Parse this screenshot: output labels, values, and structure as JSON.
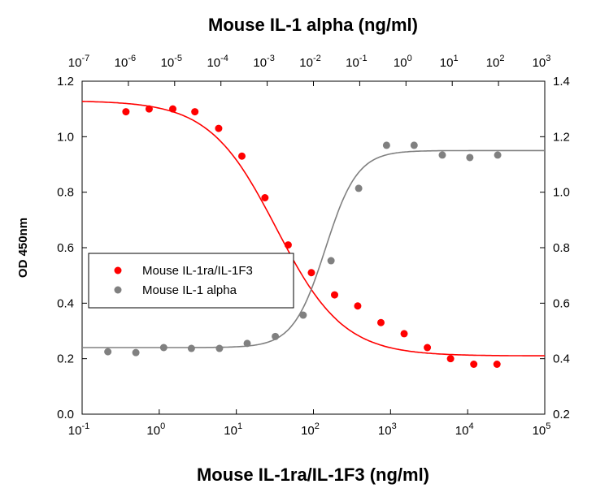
{
  "chart_data": {
    "type": "scatter",
    "top_title": "Mouse IL-1 alpha (ng/ml)",
    "xlabel": "Mouse IL-1ra/IL-1F3 (ng/ml)",
    "ylabel": "OD 450nm",
    "x_scale": "log",
    "xlim": [
      0.1,
      100000
    ],
    "x_top_scale": "log",
    "x_top_lim": [
      1e-07,
      1000
    ],
    "ylim_left": [
      0.0,
      1.2
    ],
    "ylim_right": [
      0.2,
      1.4
    ],
    "x_ticks_bottom": [
      {
        "base": "10",
        "exp": "-1"
      },
      {
        "base": "10",
        "exp": "0"
      },
      {
        "base": "10",
        "exp": "1"
      },
      {
        "base": "10",
        "exp": "2"
      },
      {
        "base": "10",
        "exp": "3"
      },
      {
        "base": "10",
        "exp": "4"
      },
      {
        "base": "10",
        "exp": "5"
      }
    ],
    "x_ticks_top": [
      {
        "base": "10",
        "exp": "-7"
      },
      {
        "base": "10",
        "exp": "-6"
      },
      {
        "base": "10",
        "exp": "-5"
      },
      {
        "base": "10",
        "exp": "-4"
      },
      {
        "base": "10",
        "exp": "-3"
      },
      {
        "base": "10",
        "exp": "-2"
      },
      {
        "base": "10",
        "exp": "-1"
      },
      {
        "base": "10",
        "exp": "0"
      },
      {
        "base": "10",
        "exp": "1"
      },
      {
        "base": "10",
        "exp": "2"
      },
      {
        "base": "10",
        "exp": "3"
      }
    ],
    "y_ticks_left": [
      "0.0",
      "0.2",
      "0.4",
      "0.6",
      "0.8",
      "1.0",
      "1.2"
    ],
    "y_ticks_right": [
      "0.2",
      "0.4",
      "0.6",
      "0.8",
      "1.0",
      "1.2",
      "1.4"
    ],
    "grid": false,
    "legend_placement": "center-left",
    "series": [
      {
        "name": "Mouse IL-1ra/IL-1F3",
        "color": "#ff0000",
        "axis": "bottom-left",
        "x": [
          0.37,
          0.74,
          1.5,
          2.9,
          5.9,
          11.8,
          23.5,
          47,
          94,
          188,
          375,
          750,
          1500,
          3000,
          6000,
          12000,
          24000
        ],
        "y": [
          1.09,
          1.1,
          1.1,
          1.09,
          1.03,
          0.93,
          0.78,
          0.61,
          0.51,
          0.43,
          0.39,
          0.33,
          0.29,
          0.24,
          0.2,
          0.18,
          0.18
        ],
        "fit": {
          "model": "4PL",
          "top": 1.13,
          "bottom": 0.21,
          "ec50": 33,
          "hill": -1.0
        }
      },
      {
        "name": "Mouse IL-1 alpha",
        "color": "#808080",
        "axis": "top-right",
        "x": [
          3.6e-07,
          1.45e-06,
          5.8e-06,
          2.3e-05,
          9.3e-05,
          0.00037,
          0.0015,
          0.006,
          0.024,
          0.095,
          0.38,
          1.5,
          6.1,
          24,
          96
        ],
        "y": [
          0.425,
          0.422,
          0.44,
          0.437,
          0.437,
          0.455,
          0.48,
          0.557,
          0.753,
          1.014,
          1.169,
          1.169,
          1.134,
          1.125,
          1.134
        ],
        "fit": {
          "model": "4PL",
          "top": 1.15,
          "bottom": 0.44,
          "ec50": 0.018,
          "hill": 1.25
        }
      }
    ]
  }
}
